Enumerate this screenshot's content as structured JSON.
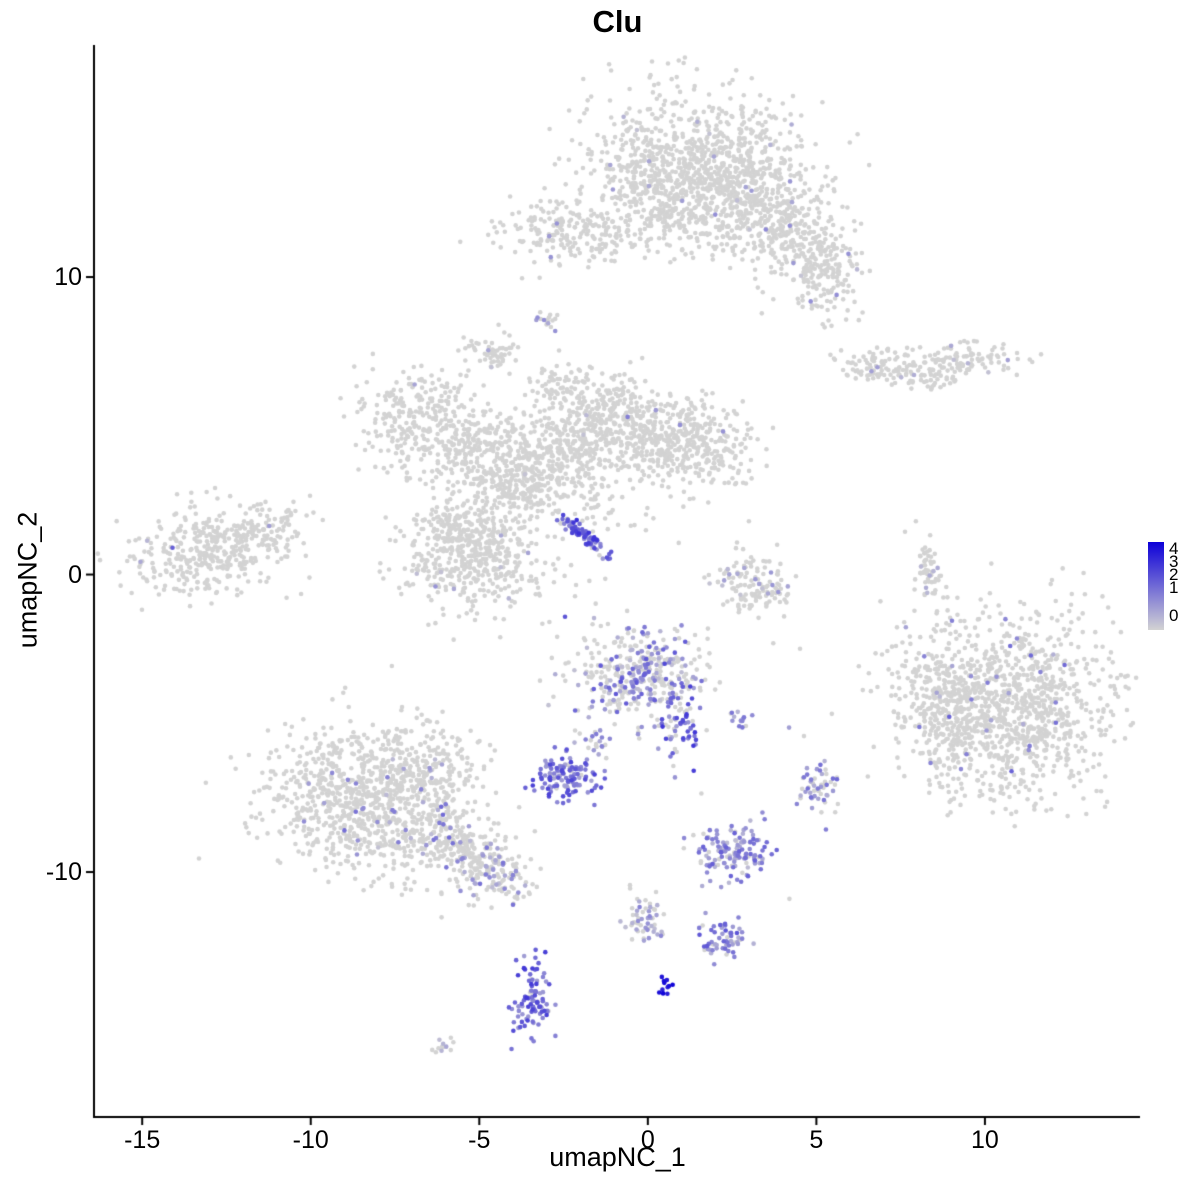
{
  "title": "Clu",
  "axes": {
    "xlabel": "umapNC_1",
    "ylabel": "umapNC_2",
    "x_ticks": [
      "-15",
      "-10",
      "-5",
      "0",
      "5",
      "10"
    ],
    "x_tick_values": [
      -15,
      -10,
      -5,
      0,
      5,
      10
    ],
    "y_ticks": [
      "10",
      "0",
      "-10"
    ],
    "y_tick_values": [
      10,
      0,
      -10
    ]
  },
  "legend": {
    "labels": [
      "4",
      "3",
      "2",
      "1",
      "0"
    ]
  },
  "chart_data": {
    "type": "scatter",
    "title": "Clu",
    "xlabel": "umapNC_1",
    "ylabel": "umapNC_2",
    "xlim": [
      -16.4,
      14.6
    ],
    "ylim": [
      -18.2,
      17.8
    ],
    "grid": false,
    "legend_position": "right",
    "color_scale": {
      "low": "#D3D3D3",
      "high": "#0D00D8",
      "domain": [
        0,
        4
      ]
    },
    "point_radius_px": 2.3,
    "clusters_schema": [
      "center_x",
      "center_y",
      "spread_x",
      "spread_y",
      "rotation_deg",
      "n_points",
      "expressing_fraction",
      "expr_min",
      "expr_max"
    ],
    "clusters": [
      [
        1.6,
        14.1,
        1.7,
        1.1,
        -10,
        620,
        0.01,
        0.3,
        1.2
      ],
      [
        0.3,
        13.2,
        0.9,
        0.9,
        0,
        250,
        0.005,
        0.3,
        1.0
      ],
      [
        3.0,
        12.5,
        1.0,
        0.9,
        -30,
        300,
        0.02,
        0.3,
        1.6
      ],
      [
        4.4,
        11.4,
        0.8,
        0.7,
        -35,
        220,
        0.03,
        0.3,
        1.6
      ],
      [
        5.2,
        9.9,
        0.55,
        0.75,
        0,
        130,
        0.03,
        0.3,
        1.5
      ],
      [
        -2.6,
        11.6,
        0.75,
        0.6,
        0,
        160,
        0.02,
        0.3,
        1.4
      ],
      [
        -1.0,
        11.3,
        0.5,
        0.45,
        0,
        60,
        0.01,
        0.3,
        1.0
      ],
      [
        1.0,
        11.9,
        0.7,
        0.6,
        0,
        120,
        0.01,
        0.3,
        1.0
      ],
      [
        -2.95,
        8.7,
        0.18,
        0.22,
        0,
        16,
        0.25,
        0.5,
        1.5
      ],
      [
        -4.65,
        7.4,
        0.4,
        0.28,
        15,
        60,
        0.02,
        0.3,
        1.0
      ],
      [
        6.9,
        7.0,
        0.65,
        0.28,
        -8,
        90,
        0.02,
        0.3,
        1.2
      ],
      [
        9.2,
        7.2,
        0.95,
        0.3,
        5,
        120,
        0.02,
        0.3,
        1.2
      ],
      [
        8.35,
        6.6,
        0.4,
        0.2,
        0,
        30,
        0.0,
        0,
        0
      ],
      [
        -6.7,
        5.3,
        0.95,
        0.85,
        0,
        270,
        0.008,
        0.3,
        1.2
      ],
      [
        -5.2,
        4.2,
        0.85,
        0.75,
        0,
        190,
        0.008,
        0.3,
        1.2
      ],
      [
        -3.7,
        3.5,
        0.85,
        0.7,
        0,
        230,
        0.008,
        0.3,
        1.2
      ],
      [
        -2.3,
        4.5,
        0.7,
        0.8,
        0,
        200,
        0.008,
        0.3,
        1.2
      ],
      [
        -1.0,
        5.2,
        0.85,
        0.8,
        0,
        270,
        0.01,
        0.3,
        1.5
      ],
      [
        1.4,
        4.3,
        0.85,
        0.75,
        0,
        310,
        0.01,
        0.3,
        1.5
      ],
      [
        0.1,
        4.6,
        0.6,
        0.6,
        0,
        120,
        0.008,
        0.3,
        1.2
      ],
      [
        -2.6,
        6.3,
        0.5,
        0.4,
        0,
        60,
        0.0,
        0,
        0
      ],
      [
        -2.0,
        2.6,
        1.0,
        0.6,
        -20,
        80,
        0.005,
        0.3,
        1.0
      ],
      [
        -5.1,
        0.5,
        1.05,
        0.85,
        0,
        420,
        0.008,
        0.3,
        1.3
      ],
      [
        -5.6,
        1.6,
        0.7,
        0.5,
        0,
        130,
        0.005,
        0.3,
        1.0
      ],
      [
        -3.9,
        2.6,
        0.5,
        0.4,
        0,
        50,
        0.0,
        0,
        0
      ],
      [
        -1.9,
        1.3,
        0.55,
        0.1,
        -42,
        70,
        0.95,
        1.0,
        3.2
      ],
      [
        -12.9,
        0.8,
        1.15,
        0.75,
        8,
        380,
        0.006,
        0.3,
        1.2
      ],
      [
        -11.1,
        1.6,
        0.6,
        0.4,
        20,
        70,
        0.0,
        0,
        0
      ],
      [
        3.1,
        -0.3,
        0.65,
        0.55,
        -30,
        130,
        0.1,
        0.3,
        1.2
      ],
      [
        8.3,
        0.1,
        0.22,
        0.6,
        10,
        60,
        0.05,
        0.3,
        1.0
      ],
      [
        10.7,
        -4.5,
        1.55,
        1.5,
        0,
        1150,
        0.02,
        0.4,
        2.2
      ],
      [
        8.7,
        -3.8,
        0.8,
        0.9,
        0,
        160,
        0.02,
        0.4,
        1.8
      ],
      [
        -0.3,
        -3.3,
        0.95,
        0.75,
        0,
        380,
        0.4,
        0.3,
        2.4
      ],
      [
        1.0,
        -5.1,
        0.3,
        0.55,
        0,
        60,
        0.75,
        0.8,
        3.0
      ],
      [
        2.7,
        -4.9,
        0.18,
        0.18,
        0,
        14,
        0.7,
        0.5,
        1.8
      ],
      [
        -2.4,
        -6.8,
        0.5,
        0.38,
        0,
        130,
        0.9,
        0.8,
        2.8
      ],
      [
        -1.5,
        -5.8,
        0.3,
        0.3,
        0,
        20,
        0.6,
        0.5,
        1.8
      ],
      [
        5.0,
        -7.1,
        0.28,
        0.45,
        0,
        55,
        0.6,
        0.5,
        2.0
      ],
      [
        -8.4,
        -7.6,
        1.5,
        1.2,
        -15,
        850,
        0.03,
        0.3,
        1.8
      ],
      [
        -6.6,
        -6.3,
        0.9,
        0.7,
        -20,
        180,
        0.03,
        0.3,
        1.6
      ],
      [
        -5.6,
        -9.2,
        0.9,
        0.55,
        -28,
        260,
        0.15,
        0.4,
        2.0
      ],
      [
        -4.4,
        -10.2,
        0.5,
        0.35,
        -30,
        80,
        0.25,
        0.4,
        1.8
      ],
      [
        2.5,
        -9.3,
        0.55,
        0.42,
        0,
        140,
        0.85,
        0.4,
        2.2
      ],
      [
        -0.2,
        -11.5,
        0.3,
        0.55,
        0,
        55,
        0.5,
        0.3,
        1.6
      ],
      [
        2.3,
        -12.3,
        0.35,
        0.35,
        0,
        60,
        0.85,
        0.6,
        2.4
      ],
      [
        -3.4,
        -14.3,
        0.32,
        0.65,
        0,
        95,
        0.95,
        1.0,
        3.0
      ],
      [
        0.5,
        -13.75,
        0.12,
        0.16,
        0,
        12,
        1.0,
        3.3,
        4.0
      ],
      [
        -6.1,
        -15.85,
        0.16,
        0.12,
        0,
        12,
        0.3,
        0.3,
        1.0
      ],
      [
        0.0,
        -2.0,
        5.0,
        3.0,
        0,
        20,
        0.05,
        0.3,
        1.0
      ]
    ],
    "highlight_points_schema": [
      "x",
      "y",
      "expression_value"
    ],
    "highlight_points": [
      [
        -14.1,
        0.9,
        2.2
      ],
      [
        -0.6,
        5.3,
        1.6
      ],
      [
        -2.7,
        11.8,
        1.2
      ],
      [
        2.0,
        12.1,
        1.3
      ],
      [
        3.5,
        11.6,
        1.4
      ],
      [
        5.6,
        9.4,
        1.3
      ],
      [
        3.4,
        -8.0,
        1.3
      ],
      [
        -4.0,
        -11.1,
        1.8
      ],
      [
        10.75,
        -2.4,
        1.9
      ],
      [
        10.95,
        -2.15,
        1.4
      ],
      [
        8.2,
        -2.75,
        1.5
      ],
      [
        12.1,
        -4.3,
        1.5
      ],
      [
        11.3,
        -5.9,
        1.3
      ],
      [
        9.6,
        -4.2,
        1.6
      ],
      [
        -9.0,
        -8.6,
        1.9
      ],
      [
        -7.4,
        -9.0,
        1.6
      ],
      [
        -8.9,
        -6.9,
        1.4
      ],
      [
        -10.2,
        -8.3,
        1.3
      ],
      [
        0.5,
        -3.0,
        2.6
      ],
      [
        -0.8,
        -3.6,
        2.4
      ],
      [
        1.15,
        -4.7,
        2.9
      ],
      [
        1.05,
        -5.5,
        2.7
      ],
      [
        -6.3,
        -0.4,
        1.2
      ],
      [
        6.9,
        -0.9,
        0.0
      ],
      [
        4.2,
        -10.9,
        0.0
      ]
    ]
  }
}
